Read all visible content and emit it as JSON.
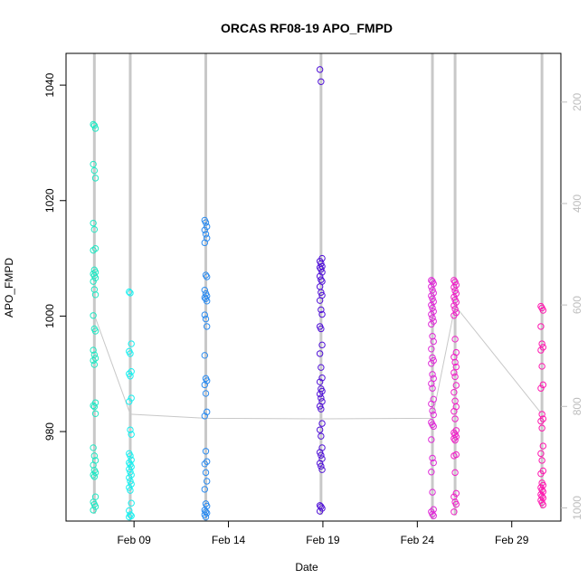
{
  "chart_data": {
    "type": "scatter",
    "title": "ORCAS RF08-19 APO_FMPD",
    "xlabel": "Date",
    "ylabel": "APO_FMPD",
    "x_ticks": [
      "Feb 09",
      "Feb 14",
      "Feb 19",
      "Feb 24",
      "Feb 29"
    ],
    "x_tick_positions_days": [
      9,
      14,
      19,
      24,
      29
    ],
    "xlim_days": [
      5.4,
      31.6
    ],
    "y_ticks": [
      980,
      1000,
      1020,
      1040
    ],
    "ylim": [
      964.5,
      1045.5
    ],
    "y2_ticks": [
      200,
      400,
      600,
      800,
      1000
    ],
    "y2lim": [
      1026,
      104
    ],
    "grid": false,
    "flights": [
      {
        "day": 6.9,
        "color": "#22e8c4",
        "values": [
          1033.2,
          1033.0,
          1032.5,
          1026.3,
          1025.2,
          1023.9,
          1016.1,
          1015.0,
          1011.7,
          1011.4,
          1008.0,
          1007.6,
          1007.3,
          1007.0,
          1006.6,
          1006.0,
          1004.6,
          1003.7,
          1000.1,
          997.8,
          997.4,
          994.1,
          993.3,
          992.7,
          992.3,
          991.6,
          985.0,
          984.5,
          984.3,
          983.1,
          977.2,
          975.8,
          975.0,
          974.2,
          973.3,
          972.9,
          972.5,
          972.2,
          968.7,
          967.8,
          967.4,
          967.0,
          966.4
        ]
      },
      {
        "day": 8.8,
        "color": "#18f0f0",
        "values": [
          1004.2,
          1004.0,
          995.2,
          993.9,
          993.5,
          990.4,
          990.0,
          989.6,
          985.8,
          985.2,
          980.3,
          979.5,
          976.2,
          975.8,
          975.1,
          974.6,
          974.3,
          973.9,
          973.5,
          973.0,
          972.5,
          972.0,
          971.4,
          970.9,
          970.3,
          969.8,
          967.6,
          966.3,
          965.6,
          965.4,
          965.2
        ]
      },
      {
        "day": 12.8,
        "color": "#2d8cf0",
        "values": [
          1016.6,
          1016.2,
          1015.5,
          1014.9,
          1014.2,
          1013.5,
          1012.7,
          1007.1,
          1006.8,
          1004.5,
          1003.9,
          1003.5,
          1003.2,
          1003.0,
          1002.6,
          1000.2,
          999.5,
          998.2,
          993.2,
          989.2,
          988.8,
          988.1,
          986.6,
          983.4,
          982.7,
          976.6,
          974.8,
          974.4,
          972.9,
          971.4,
          970.0,
          967.5,
          967.1,
          966.4,
          966.1,
          965.9,
          965.6,
          965.2
        ]
      },
      {
        "day": 18.9,
        "color": "#5010d8",
        "values": [
          1042.7,
          1040.6,
          1010.0,
          1009.5,
          1009.1,
          1008.6,
          1008.4,
          1008.1,
          1007.6,
          1006.9,
          1006.3,
          1006.0,
          1005.1,
          1004.1,
          1003.6,
          1002.7,
          1001.1,
          1000.3,
          998.2,
          997.8,
          995.0,
          993.5,
          991.1,
          989.3,
          988.6,
          987.4,
          987.0,
          986.5,
          985.8,
          985.2,
          984.4,
          983.9,
          981.4,
          980.3,
          979.2,
          977.2,
          976.4,
          975.9,
          975.3,
          974.5,
          974.0,
          973.4,
          967.2,
          967.0,
          966.7,
          966.2
        ]
      },
      {
        "day": 24.8,
        "color": "#e02ad8",
        "values": [
          1006.2,
          1006.0,
          1005.6,
          1005.1,
          1004.5,
          1004.0,
          1003.5,
          1003.0,
          1002.5,
          1001.9,
          1001.4,
          1000.8,
          1000.3,
          999.7,
          999.1,
          998.6,
          996.5,
          995.6,
          994.3,
          992.8,
          992.3,
          991.8,
          989.9,
          989.2,
          988.3,
          987.5,
          985.6,
          984.8,
          983.6,
          982.9,
          981.6,
          981.2,
          980.9,
          978.6,
          975.4,
          974.6,
          973.0,
          969.5,
          966.5,
          966.1,
          965.7,
          965.4
        ]
      },
      {
        "day": 26.0,
        "color": "#f020c8",
        "values": [
          1006.2,
          1005.9,
          1005.4,
          1005.0,
          1004.4,
          1003.9,
          1003.3,
          1002.8,
          1002.4,
          1001.8,
          1001.2,
          1000.6,
          1000.1,
          996.0,
          993.7,
          992.9,
          992.0,
          991.2,
          990.2,
          989.5,
          988.0,
          986.8,
          985.3,
          984.3,
          983.5,
          982.2,
          980.2,
          979.8,
          979.5,
          979.1,
          978.8,
          978.5,
          976.0,
          975.8,
          972.9,
          969.3,
          968.7,
          967.8,
          967.4,
          966.1
        ]
      },
      {
        "day": 30.6,
        "color": "#ff18b0",
        "values": [
          1001.7,
          1001.4,
          1001.0,
          998.2,
          995.2,
          994.6,
          994.1,
          991.3,
          988.1,
          987.5,
          983.0,
          982.2,
          981.8,
          980.6,
          977.5,
          976.2,
          975.0,
          973.2,
          972.7,
          971.1,
          970.7,
          970.3,
          969.9,
          969.6,
          969.1,
          968.8,
          968.5,
          968.1,
          967.7,
          967.3
        ]
      }
    ],
    "pressure_line": [
      {
        "day": 6.9,
        "value": 1000.2
      },
      {
        "day": 8.8,
        "value": 983.0
      },
      {
        "day": 12.8,
        "value": 982.3
      },
      {
        "day": 18.9,
        "value": 982.2
      },
      {
        "day": 24.8,
        "value": 982.3
      },
      {
        "day": 26.0,
        "value": 1001.8
      },
      {
        "day": 30.6,
        "value": 983.0
      }
    ]
  }
}
